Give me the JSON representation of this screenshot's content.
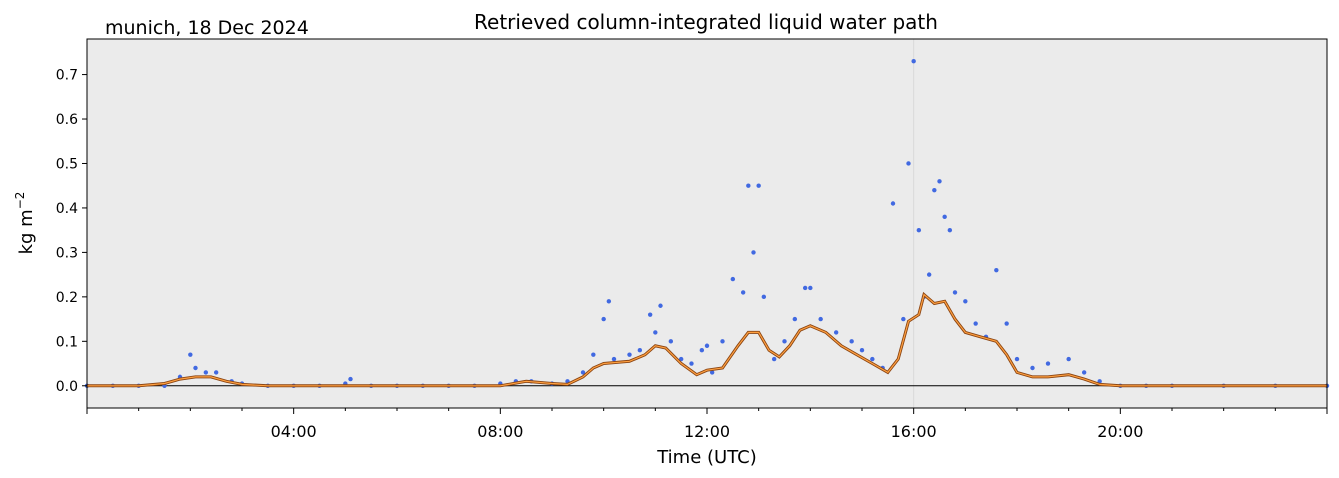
{
  "chart_data": {
    "type": "scatter",
    "title": "Retrieved column-integrated liquid water path",
    "location_label": "munich, 18 Dec 2024",
    "xlabel": "Time (UTC)",
    "ylabel": "kg m",
    "ylabel_exponent": "−2",
    "xlim": [
      0,
      24
    ],
    "ylim": [
      -0.05,
      0.78
    ],
    "x_ticks": [
      4,
      8,
      12,
      16,
      20
    ],
    "x_tick_labels": [
      "04:00",
      "08:00",
      "12:00",
      "16:00",
      "20:00"
    ],
    "y_ticks": [
      0.0,
      0.1,
      0.2,
      0.3,
      0.4,
      0.5,
      0.6,
      0.7
    ],
    "y_tick_labels": [
      "0.0",
      "0.1",
      "0.2",
      "0.3",
      "0.4",
      "0.5",
      "0.6",
      "0.7"
    ],
    "grid": "vertical line at 16:00",
    "legend": "none",
    "colors": {
      "background": "#ebebeb",
      "points": "#4169e1",
      "smooth_outer": "#8b4513",
      "smooth_inner": "#ffa040",
      "zero_line": "#000000"
    },
    "series": [
      {
        "kind": "scatter",
        "x": [
          0.0,
          0.5,
          1.0,
          1.5,
          1.8,
          2.0,
          2.1,
          2.3,
          2.5,
          2.8,
          3.0,
          3.5,
          4.0,
          4.5,
          5.0,
          5.1,
          5.5,
          6.0,
          6.5,
          7.0,
          7.5,
          8.0,
          8.3,
          8.6,
          9.0,
          9.3,
          9.6,
          9.8,
          10.0,
          10.1,
          10.2,
          10.5,
          10.7,
          10.9,
          11.0,
          11.1,
          11.3,
          11.5,
          11.7,
          11.9,
          12.0,
          12.1,
          12.3,
          12.5,
          12.7,
          12.8,
          12.9,
          13.0,
          13.1,
          13.3,
          13.5,
          13.7,
          13.9,
          14.0,
          14.2,
          14.5,
          14.8,
          15.0,
          15.2,
          15.4,
          15.6,
          15.8,
          15.9,
          16.0,
          16.1,
          16.2,
          16.3,
          16.4,
          16.5,
          16.6,
          16.7,
          16.8,
          17.0,
          17.2,
          17.4,
          17.6,
          17.8,
          18.0,
          18.3,
          18.6,
          19.0,
          19.3,
          19.6,
          20.0,
          20.5,
          21.0,
          22.0,
          23.0,
          24.0
        ],
        "y": [
          0.0,
          0.0,
          0.0,
          0.0,
          0.02,
          0.07,
          0.04,
          0.03,
          0.03,
          0.01,
          0.005,
          0.0,
          0.0,
          0.0,
          0.005,
          0.015,
          0.0,
          0.0,
          0.0,
          0.0,
          0.0,
          0.005,
          0.01,
          0.01,
          0.005,
          0.01,
          0.03,
          0.07,
          0.15,
          0.19,
          0.06,
          0.07,
          0.08,
          0.16,
          0.12,
          0.18,
          0.1,
          0.06,
          0.05,
          0.08,
          0.09,
          0.03,
          0.1,
          0.24,
          0.21,
          0.45,
          0.3,
          0.45,
          0.2,
          0.06,
          0.1,
          0.15,
          0.22,
          0.22,
          0.15,
          0.12,
          0.1,
          0.08,
          0.06,
          0.04,
          0.41,
          0.15,
          0.5,
          0.73,
          0.35,
          0.2,
          0.25,
          0.44,
          0.46,
          0.38,
          0.35,
          0.21,
          0.19,
          0.14,
          0.11,
          0.26,
          0.14,
          0.06,
          0.04,
          0.05,
          0.06,
          0.03,
          0.01,
          0.0,
          0.0,
          0.0,
          0.0,
          0.0,
          0.0
        ]
      },
      {
        "kind": "smooth_line",
        "x": [
          0.0,
          1.0,
          1.5,
          1.8,
          2.1,
          2.4,
          2.7,
          3.0,
          3.5,
          4.0,
          5.0,
          6.0,
          7.0,
          8.0,
          8.5,
          9.0,
          9.3,
          9.6,
          9.8,
          10.0,
          10.5,
          10.8,
          11.0,
          11.2,
          11.5,
          11.8,
          12.0,
          12.3,
          12.6,
          12.8,
          13.0,
          13.2,
          13.4,
          13.6,
          13.8,
          14.0,
          14.3,
          14.6,
          14.9,
          15.2,
          15.5,
          15.7,
          15.9,
          16.1,
          16.2,
          16.4,
          16.6,
          16.8,
          17.0,
          17.3,
          17.6,
          17.8,
          18.0,
          18.3,
          18.6,
          19.0,
          19.3,
          19.6,
          20.0,
          21.0,
          22.0,
          24.0
        ],
        "y": [
          0.0,
          0.0,
          0.005,
          0.015,
          0.02,
          0.02,
          0.01,
          0.003,
          0.0,
          0.0,
          0.0,
          0.0,
          0.0,
          0.0,
          0.01,
          0.005,
          0.003,
          0.02,
          0.04,
          0.05,
          0.055,
          0.07,
          0.09,
          0.085,
          0.05,
          0.025,
          0.035,
          0.04,
          0.09,
          0.12,
          0.12,
          0.08,
          0.065,
          0.09,
          0.125,
          0.135,
          0.12,
          0.09,
          0.07,
          0.05,
          0.03,
          0.06,
          0.145,
          0.16,
          0.205,
          0.185,
          0.19,
          0.15,
          0.12,
          0.11,
          0.1,
          0.07,
          0.03,
          0.02,
          0.02,
          0.025,
          0.015,
          0.003,
          0.0,
          0.0,
          0.0,
          0.0
        ]
      }
    ]
  }
}
